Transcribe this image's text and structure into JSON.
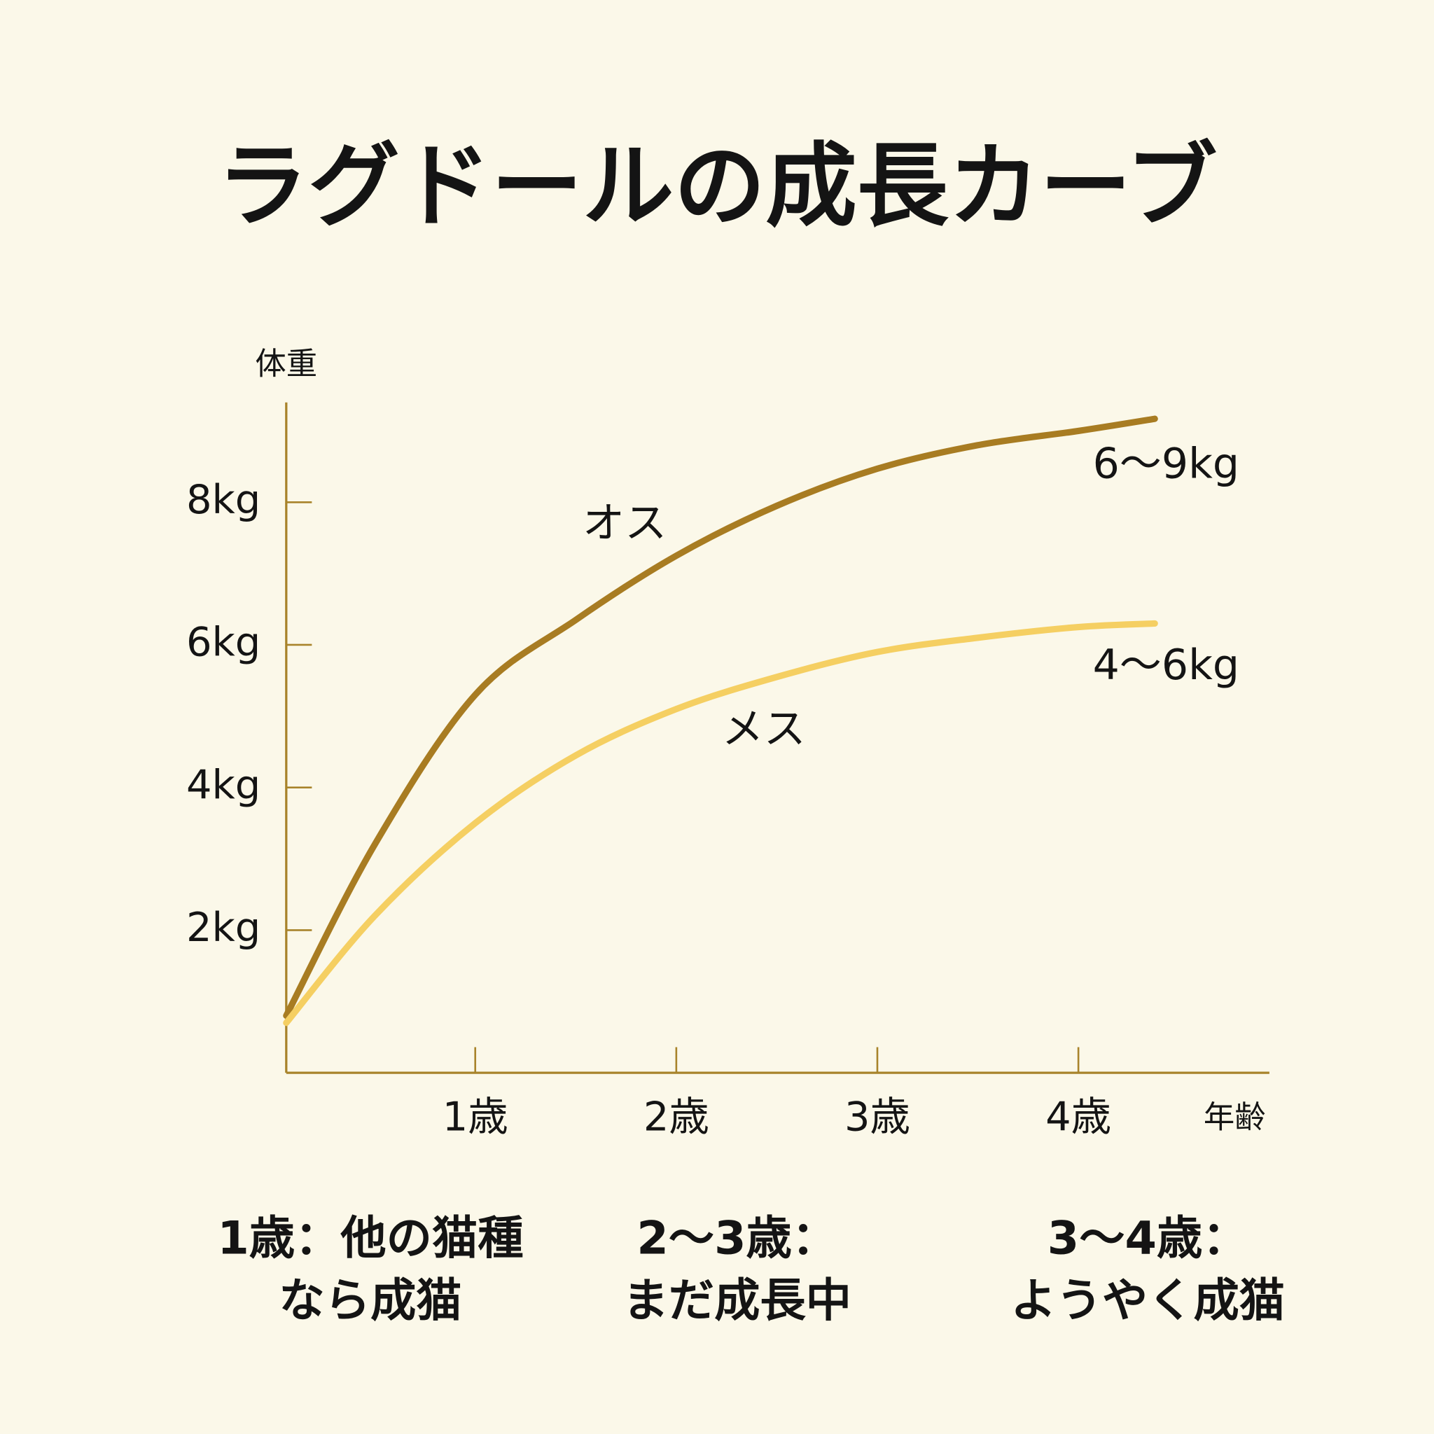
{
  "chart_data": {
    "type": "line",
    "title": "ラグドールの成長カーブ",
    "y_label": "体重",
    "x_label": "年齢",
    "xlim": [
      0.06,
      4.95
    ],
    "ylim": [
      0,
      9.4
    ],
    "xticks": [
      {
        "value": 1,
        "label": "1歳"
      },
      {
        "value": 2,
        "label": "2歳"
      },
      {
        "value": 3,
        "label": "3歳"
      },
      {
        "value": 4,
        "label": "4歳"
      }
    ],
    "yticks": [
      {
        "value": 2,
        "label": "2kg"
      },
      {
        "value": 4,
        "label": "4kg"
      },
      {
        "value": 6,
        "label": "6kg"
      },
      {
        "value": 8,
        "label": "8kg"
      }
    ],
    "x": [
      0.06,
      0.5,
      1,
      1.5,
      2,
      2.5,
      3,
      3.5,
      4,
      4.38
    ],
    "series": [
      {
        "name": "オス",
        "color": "#a87c22",
        "values": [
          0.8,
          3.2,
          5.3,
          6.35,
          7.25,
          7.95,
          8.47,
          8.8,
          9.0,
          9.17
        ]
      },
      {
        "name": "メス",
        "color": "#f5cf62",
        "values": [
          0.7,
          2.2,
          3.5,
          4.45,
          5.1,
          5.55,
          5.9,
          6.1,
          6.25,
          6.3
        ]
      }
    ],
    "annotations": [
      "6〜9kg",
      "4〜6kg"
    ],
    "notes": [
      {
        "lines": [
          "1歳：他の猫種",
          "なら成猫"
        ]
      },
      {
        "lines": [
          "2〜3歳：",
          "まだ成長中"
        ]
      },
      {
        "lines": [
          "3〜4歳：",
          "ようやく成猫"
        ]
      }
    ]
  }
}
